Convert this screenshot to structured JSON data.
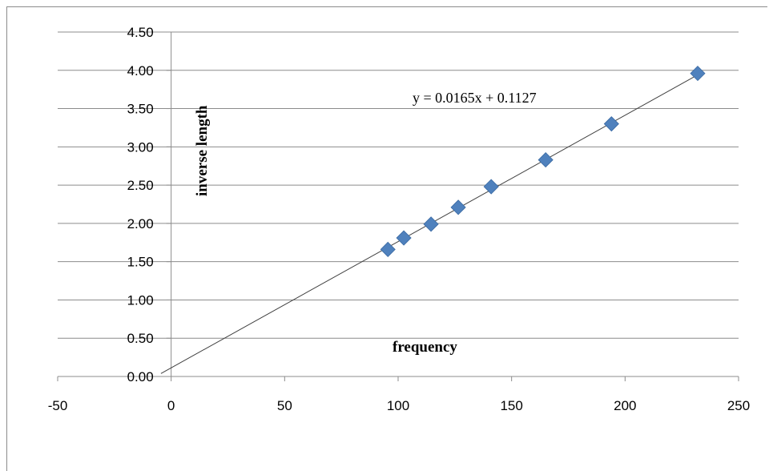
{
  "chart_data": {
    "type": "scatter",
    "title": "",
    "xlabel": "frequency",
    "ylabel": "inverse length",
    "xlim": [
      -50,
      250
    ],
    "ylim": [
      0,
      4.5
    ],
    "x_ticks": [
      "-50",
      "0",
      "50",
      "100",
      "150",
      "200",
      "250"
    ],
    "y_ticks": [
      "0.00",
      "0.50",
      "1.00",
      "1.50",
      "2.00",
      "2.50",
      "3.00",
      "3.50",
      "4.00",
      "4.50"
    ],
    "grid": "horizontal",
    "marker": "diamond",
    "marker_color": "#4f81bd",
    "series": [
      {
        "x": [
          95.5,
          102.5,
          114.5,
          126.5,
          141,
          165,
          194,
          232
        ],
        "y": [
          1.66,
          1.81,
          1.99,
          2.21,
          2.48,
          2.83,
          3.3,
          3.96
        ]
      }
    ],
    "trendline": {
      "slope": 0.0165,
      "intercept": 0.1127,
      "x_range": [
        -4.5,
        232
      ],
      "color": "#404040",
      "equation_label": "y = 0.0165x + 0.1127"
    }
  }
}
